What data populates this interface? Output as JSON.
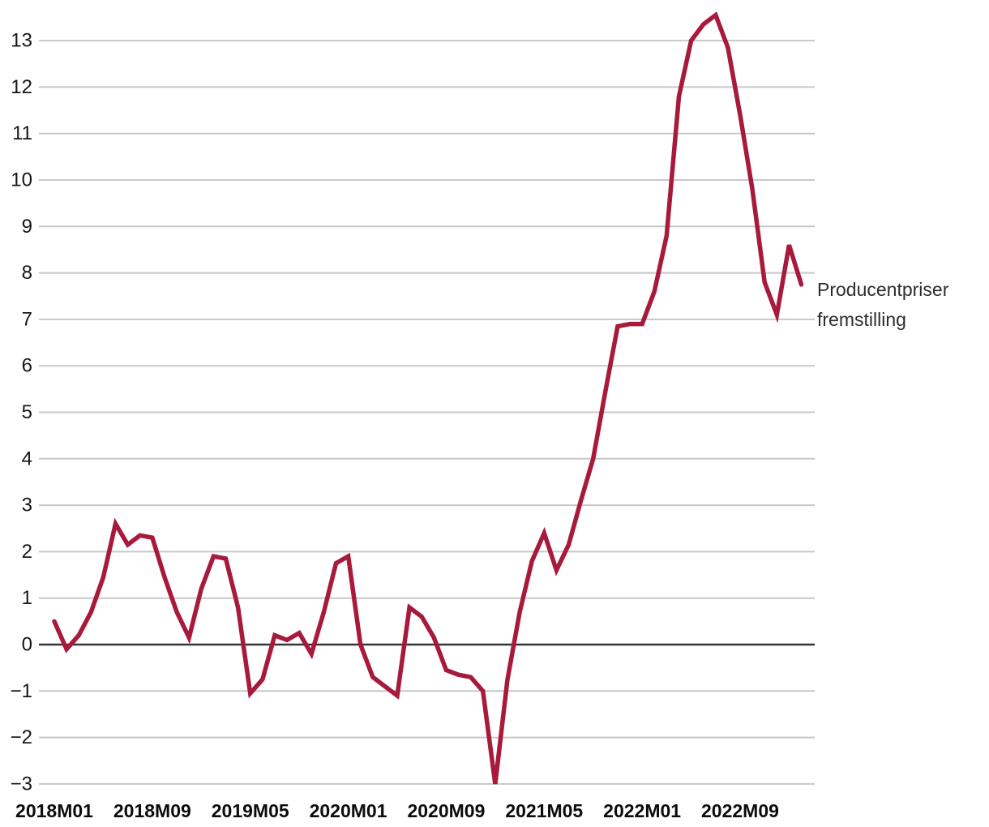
{
  "annotation": {
    "label": "Producentpriser fremstilling"
  },
  "style": {
    "line_color": "#a81a3c",
    "grid_color": "#c8c8c8",
    "zero_line_color": "#363636",
    "tick_text_color": "#161616",
    "annotation_text_color": "#2d2d2d",
    "background": "#ffffff"
  },
  "chart_data": {
    "type": "line",
    "title": "",
    "xlabel": "",
    "ylabel": "",
    "grid": "horizontal",
    "ylim": [
      -3,
      13
    ],
    "y_tick_step": 1,
    "y_ticks": [
      -3,
      -2,
      -1,
      0,
      1,
      2,
      3,
      4,
      5,
      6,
      7,
      8,
      9,
      10,
      11,
      12,
      13
    ],
    "x_tick_every": 8,
    "x_tick_labels": [
      "2018M01",
      "2018M09",
      "2019M05",
      "2020M01",
      "2020M09",
      "2021M05",
      "2022M01",
      "2022M09"
    ],
    "x": [
      "2018M01",
      "2018M02",
      "2018M03",
      "2018M04",
      "2018M05",
      "2018M06",
      "2018M07",
      "2018M08",
      "2018M09",
      "2018M10",
      "2018M11",
      "2018M12",
      "2019M01",
      "2019M02",
      "2019M03",
      "2019M04",
      "2019M05",
      "2019M06",
      "2019M07",
      "2019M08",
      "2019M09",
      "2019M10",
      "2019M11",
      "2019M12",
      "2020M01",
      "2020M02",
      "2020M03",
      "2020M04",
      "2020M05",
      "2020M06",
      "2020M07",
      "2020M08",
      "2020M09",
      "2020M10",
      "2020M11",
      "2020M12",
      "2021M01",
      "2021M02",
      "2021M03",
      "2021M04",
      "2021M05",
      "2021M06",
      "2021M07",
      "2021M08",
      "2021M09",
      "2021M10",
      "2021M11",
      "2021M12",
      "2022M01",
      "2022M02",
      "2022M03",
      "2022M04",
      "2022M05",
      "2022M06",
      "2022M07",
      "2022M08",
      "2022M09",
      "2022M10",
      "2022M11",
      "2022M12",
      "2023M01",
      "2023M02"
    ],
    "series": [
      {
        "name": "Producentpriser fremstilling",
        "color": "#a81a3c",
        "values": [
          0.5,
          -0.1,
          0.2,
          0.7,
          1.45,
          2.6,
          2.15,
          2.35,
          2.3,
          1.45,
          0.7,
          0.15,
          1.2,
          1.9,
          1.85,
          0.8,
          -1.05,
          -0.75,
          0.2,
          0.1,
          0.25,
          -0.2,
          0.7,
          1.75,
          1.9,
          0.0,
          -0.7,
          -0.9,
          -1.1,
          0.8,
          0.6,
          0.15,
          -0.55,
          -0.65,
          -0.7,
          -1.0,
          -3.0,
          -0.75,
          0.7,
          1.8,
          2.4,
          1.6,
          2.15,
          3.1,
          4.0,
          5.45,
          6.85,
          6.9,
          6.9,
          7.6,
          8.8,
          11.8,
          13.0,
          13.35,
          13.55,
          12.85,
          11.4,
          9.8,
          7.8,
          7.1,
          8.6,
          7.75
        ]
      }
    ],
    "legend_position": "right-of-line-end"
  }
}
